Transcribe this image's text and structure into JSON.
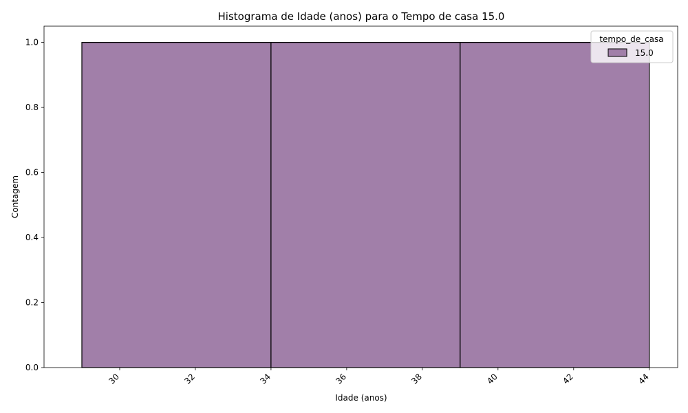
{
  "chart_data": {
    "type": "bar",
    "title": "Histograma de Idade (anos) para o Tempo de casa 15.0",
    "xlabel": "Idade (anos)",
    "ylabel": "Contagem",
    "bins": [
      {
        "start": 29,
        "end": 34,
        "count": 1
      },
      {
        "start": 34,
        "end": 39,
        "count": 1
      },
      {
        "start": 39,
        "end": 44,
        "count": 1
      }
    ],
    "xlim": [
      28,
      44.75
    ],
    "ylim": [
      0,
      1.05
    ],
    "xticks": [
      30,
      32,
      34,
      36,
      38,
      40,
      42,
      44
    ],
    "yticks": [
      "0.0",
      "0.2",
      "0.4",
      "0.6",
      "0.8",
      "1.0"
    ],
    "grid": false,
    "legend": {
      "title": "tempo_de_casa",
      "placement": "top-right",
      "entries": [
        {
          "label": "15.0",
          "color": "#a17fa9"
        }
      ]
    },
    "bar_color": "#a17fa9",
    "edge_color": "#000000"
  }
}
